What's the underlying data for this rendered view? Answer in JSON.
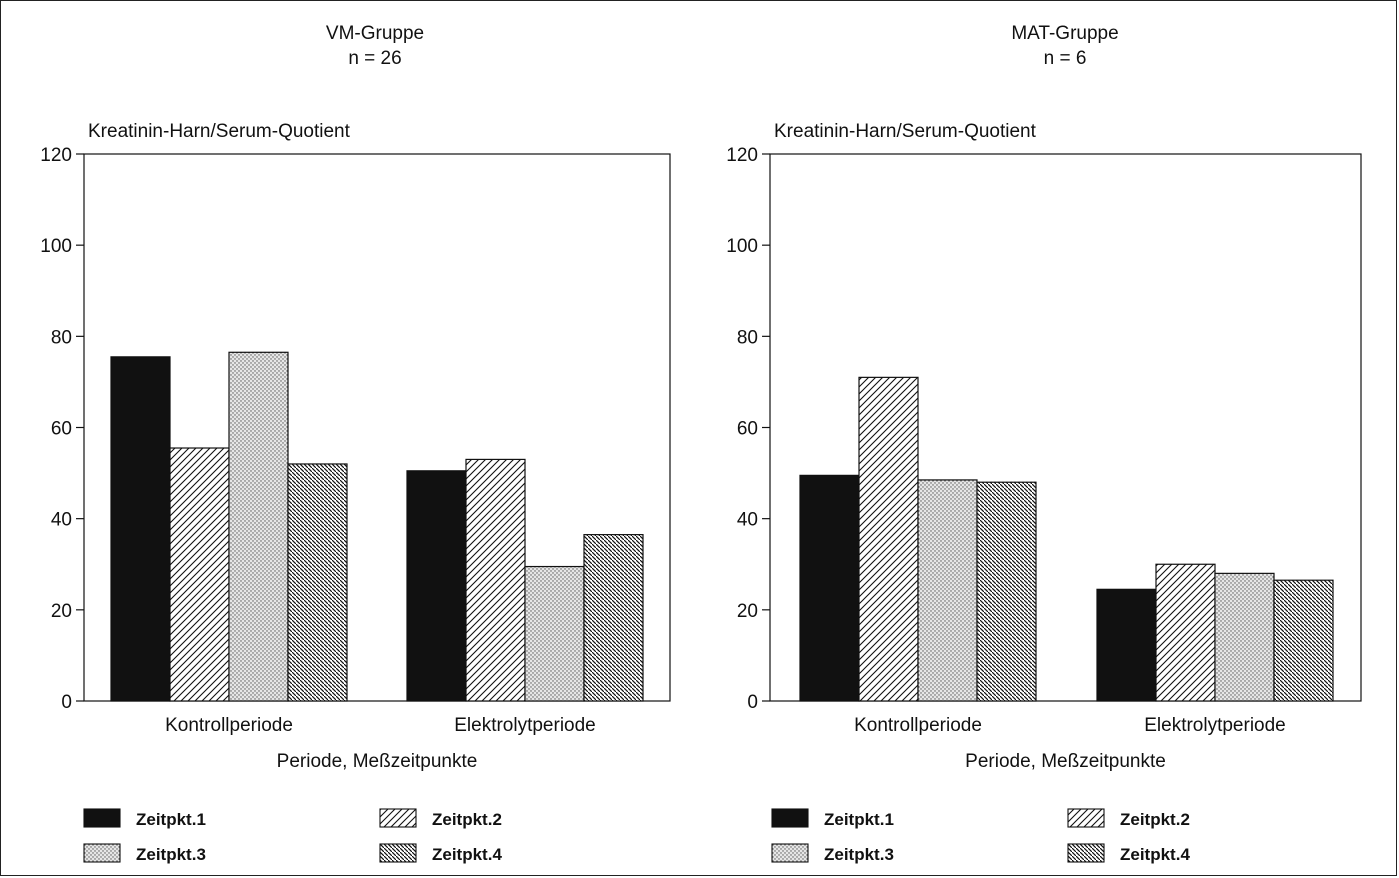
{
  "chart_data": [
    {
      "type": "bar",
      "title": "VM-Gruppe",
      "subtitle": "n = 26",
      "ylabel": "Kreatinin-Harn/Serum-Quotient",
      "xlabel": "Periode, Meßzeitpunkte",
      "ylim": [
        0,
        120
      ],
      "yticks": [
        "0",
        "20",
        "40",
        "60",
        "80",
        "100",
        "120"
      ],
      "categories": [
        "Kontrollperiode",
        "Elektrolytperiode"
      ],
      "series": [
        {
          "name": "Zeitpkt.1",
          "values": [
            75.5,
            50.5
          ]
        },
        {
          "name": "Zeitpkt.2",
          "values": [
            55.5,
            53
          ]
        },
        {
          "name": "Zeitpkt.3",
          "values": [
            76.5,
            29.5
          ]
        },
        {
          "name": "Zeitpkt.4",
          "values": [
            52,
            36.5
          ]
        }
      ],
      "grid": false,
      "legend": "bottom"
    },
    {
      "type": "bar",
      "title": "MAT-Gruppe",
      "subtitle": "n = 6",
      "ylabel": "Kreatinin-Harn/Serum-Quotient",
      "xlabel": "Periode, Meßzeitpunkte",
      "ylim": [
        0,
        120
      ],
      "yticks": [
        "0",
        "20",
        "40",
        "60",
        "80",
        "100",
        "120"
      ],
      "categories": [
        "Kontrollperiode",
        "Elektrolytperiode"
      ],
      "series": [
        {
          "name": "Zeitpkt.1",
          "values": [
            49.5,
            24.5
          ]
        },
        {
          "name": "Zeitpkt.2",
          "values": [
            71,
            30
          ]
        },
        {
          "name": "Zeitpkt.3",
          "values": [
            48.5,
            28
          ]
        },
        {
          "name": "Zeitpkt.4",
          "values": [
            48,
            26.5
          ]
        }
      ],
      "grid": false,
      "legend": "bottom"
    }
  ],
  "patterns": [
    "solid",
    "hatch-fine",
    "dots",
    "hatch-dense"
  ],
  "colors": {
    "ink": "#111111",
    "dot_bg": "#e6e6e6",
    "paper": "#ffffff"
  }
}
